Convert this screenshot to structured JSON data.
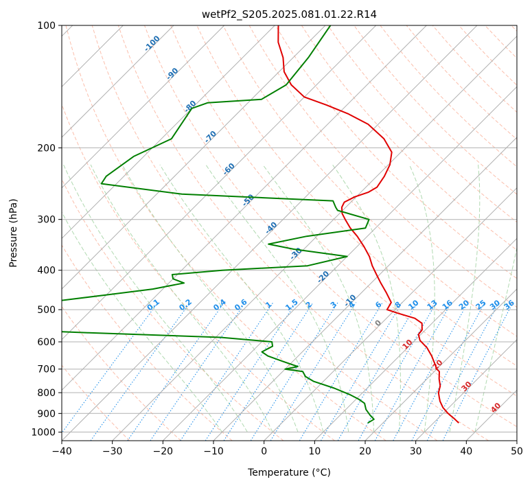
{
  "chart_data": {
    "type": "line",
    "title": "wetPf2_S205.2025.081.01.22.R14",
    "xlabel": "Temperature (°C)",
    "ylabel": "Pressure (hPa)",
    "xlim": [
      -40,
      50
    ],
    "ylim": [
      1050,
      100
    ],
    "y_scale": "log",
    "x_ticks": [
      -40,
      -30,
      -20,
      -10,
      0,
      10,
      20,
      30,
      40,
      50
    ],
    "y_ticks": [
      100,
      200,
      300,
      400,
      500,
      600,
      700,
      800,
      900,
      1000
    ],
    "grid": true,
    "skew": 45,
    "colors": {
      "temperature": "#e00000",
      "dewpoint": "#007f00",
      "isotherm_grid": "#b0b0b0",
      "dry_adiabat": "#f9a88f",
      "moist_adiabat": "#9ccf9c",
      "mixing_ratio": "#1f8fea",
      "isotherm_label_cold": "#2070b4",
      "isotherm_label_warm": "#d62728",
      "isotherm_label_zero": "#808080"
    },
    "series": [
      {
        "name": "",
        "variable": "temperature",
        "points": [
          [
            35.0,
            950
          ],
          [
            33.5,
            930
          ],
          [
            31.0,
            900
          ],
          [
            28.8,
            870
          ],
          [
            27.0,
            840
          ],
          [
            26.0,
            820
          ],
          [
            25.0,
            800
          ],
          [
            24.0,
            770
          ],
          [
            22.4,
            740
          ],
          [
            21.0,
            710
          ],
          [
            20.0,
            700
          ],
          [
            18.6,
            680
          ],
          [
            16.4,
            650
          ],
          [
            13.8,
            620
          ],
          [
            11.0,
            595
          ],
          [
            9.5,
            575
          ],
          [
            9.4,
            565
          ],
          [
            9.3,
            560
          ],
          [
            8.0,
            540
          ],
          [
            5.6,
            525
          ],
          [
            1.2,
            510
          ],
          [
            -1.6,
            500
          ],
          [
            -2.2,
            480
          ],
          [
            -5.0,
            455
          ],
          [
            -8.1,
            430
          ],
          [
            -10.6,
            410
          ],
          [
            -13.2,
            390
          ],
          [
            -15.6,
            370
          ],
          [
            -18.6,
            350
          ],
          [
            -22.0,
            330
          ],
          [
            -25.0,
            315
          ],
          [
            -27.7,
            300
          ],
          [
            -29.5,
            290
          ],
          [
            -30.8,
            280
          ],
          [
            -31.3,
            272
          ],
          [
            -30.3,
            264
          ],
          [
            -28.5,
            257
          ],
          [
            -27.8,
            250
          ],
          [
            -28.5,
            235
          ],
          [
            -29.7,
            220
          ],
          [
            -31.8,
            205
          ],
          [
            -36.0,
            190
          ],
          [
            -42.0,
            175
          ],
          [
            -48.0,
            165
          ],
          [
            -54.0,
            157
          ],
          [
            -60.0,
            150
          ],
          [
            -65.0,
            140
          ],
          [
            -69.0,
            130
          ],
          [
            -72.0,
            120
          ],
          [
            -76.0,
            110
          ],
          [
            -79.3,
            100
          ]
        ]
      },
      {
        "name": "",
        "variable": "dewpoint",
        "points": [
          [
            17.0,
            950
          ],
          [
            17.5,
            930
          ],
          [
            16.0,
            910
          ],
          [
            14.0,
            880
          ],
          [
            12.5,
            850
          ],
          [
            10.5,
            830
          ],
          [
            8.0,
            810
          ],
          [
            3.5,
            780
          ],
          [
            -2.0,
            750
          ],
          [
            -4.5,
            730
          ],
          [
            -6.0,
            710
          ],
          [
            -10.0,
            700
          ],
          [
            -8.0,
            690
          ],
          [
            -12.0,
            670
          ],
          [
            -16.0,
            650
          ],
          [
            -18.0,
            635
          ],
          [
            -17.0,
            615
          ],
          [
            -18.0,
            600
          ],
          [
            -29.0,
            585
          ],
          [
            -56.0,
            570
          ],
          [
            -72.0,
            560
          ],
          [
            -85.0,
            545
          ],
          [
            -88.0,
            530
          ],
          [
            -75.0,
            515
          ],
          [
            -80.0,
            500
          ],
          [
            -78.0,
            490
          ],
          [
            -68.0,
            475
          ],
          [
            -60.0,
            460
          ],
          [
            -52.0,
            445
          ],
          [
            -47.0,
            430
          ],
          [
            -50.0,
            420
          ],
          [
            -51.0,
            410
          ],
          [
            -42.0,
            400
          ],
          [
            -26.0,
            390
          ],
          [
            -20.0,
            370
          ],
          [
            -32.0,
            355
          ],
          [
            -38.0,
            345
          ],
          [
            -32.0,
            330
          ],
          [
            -22.0,
            315
          ],
          [
            -23.0,
            300
          ],
          [
            -31.0,
            285
          ],
          [
            -32.0,
            280
          ],
          [
            -33.8,
            270
          ],
          [
            -65.0,
            260
          ],
          [
            -83.0,
            245
          ],
          [
            -83.5,
            235
          ],
          [
            -82.0,
            210
          ],
          [
            -78.0,
            190
          ],
          [
            -80.0,
            160
          ],
          [
            -78.0,
            155
          ],
          [
            -68.0,
            152
          ],
          [
            -66.0,
            140
          ],
          [
            -67.0,
            120
          ],
          [
            -69.0,
            100
          ]
        ]
      }
    ],
    "dry_adiabat_thetas_c": [
      -30,
      -20,
      -10,
      0,
      10,
      20,
      30,
      40,
      50,
      60,
      70,
      80,
      90,
      100,
      110,
      120,
      130,
      140,
      150,
      160,
      170,
      180,
      190,
      200,
      210,
      220,
      230,
      240,
      250
    ],
    "moist_adiabat_starts_c": [
      -10,
      -5,
      0,
      5,
      10,
      15,
      20,
      25,
      30,
      35,
      40
    ],
    "mixing_ratio_lines": [
      "0.1",
      "0.2",
      "0.4",
      "0.6",
      "1",
      "1.5",
      "2",
      "3",
      "4",
      "6",
      "8",
      "10",
      "13",
      "16",
      "20",
      "25",
      "30",
      "36"
    ],
    "isotherm_labels": [
      {
        "text": "-100",
        "t": -100,
        "p": 112
      },
      {
        "text": "-90",
        "t": -90,
        "p": 133
      },
      {
        "text": "-80",
        "t": -80,
        "p": 160
      },
      {
        "text": "-70",
        "t": -70,
        "p": 190
      },
      {
        "text": "-60",
        "t": -60,
        "p": 228
      },
      {
        "text": "-50",
        "t": -50,
        "p": 272
      },
      {
        "text": "-40",
        "t": -40,
        "p": 318
      },
      {
        "text": "-30",
        "t": -30,
        "p": 368
      },
      {
        "text": "-20",
        "t": -20,
        "p": 420
      },
      {
        "text": "-10",
        "t": -10,
        "p": 480
      },
      {
        "text": "0",
        "t": 0,
        "p": 545
      },
      {
        "text": "10",
        "t": 10,
        "p": 615
      },
      {
        "text": "20",
        "t": 20,
        "p": 690
      },
      {
        "text": "30",
        "t": 30,
        "p": 780
      },
      {
        "text": "40",
        "t": 40,
        "p": 880
      }
    ]
  }
}
